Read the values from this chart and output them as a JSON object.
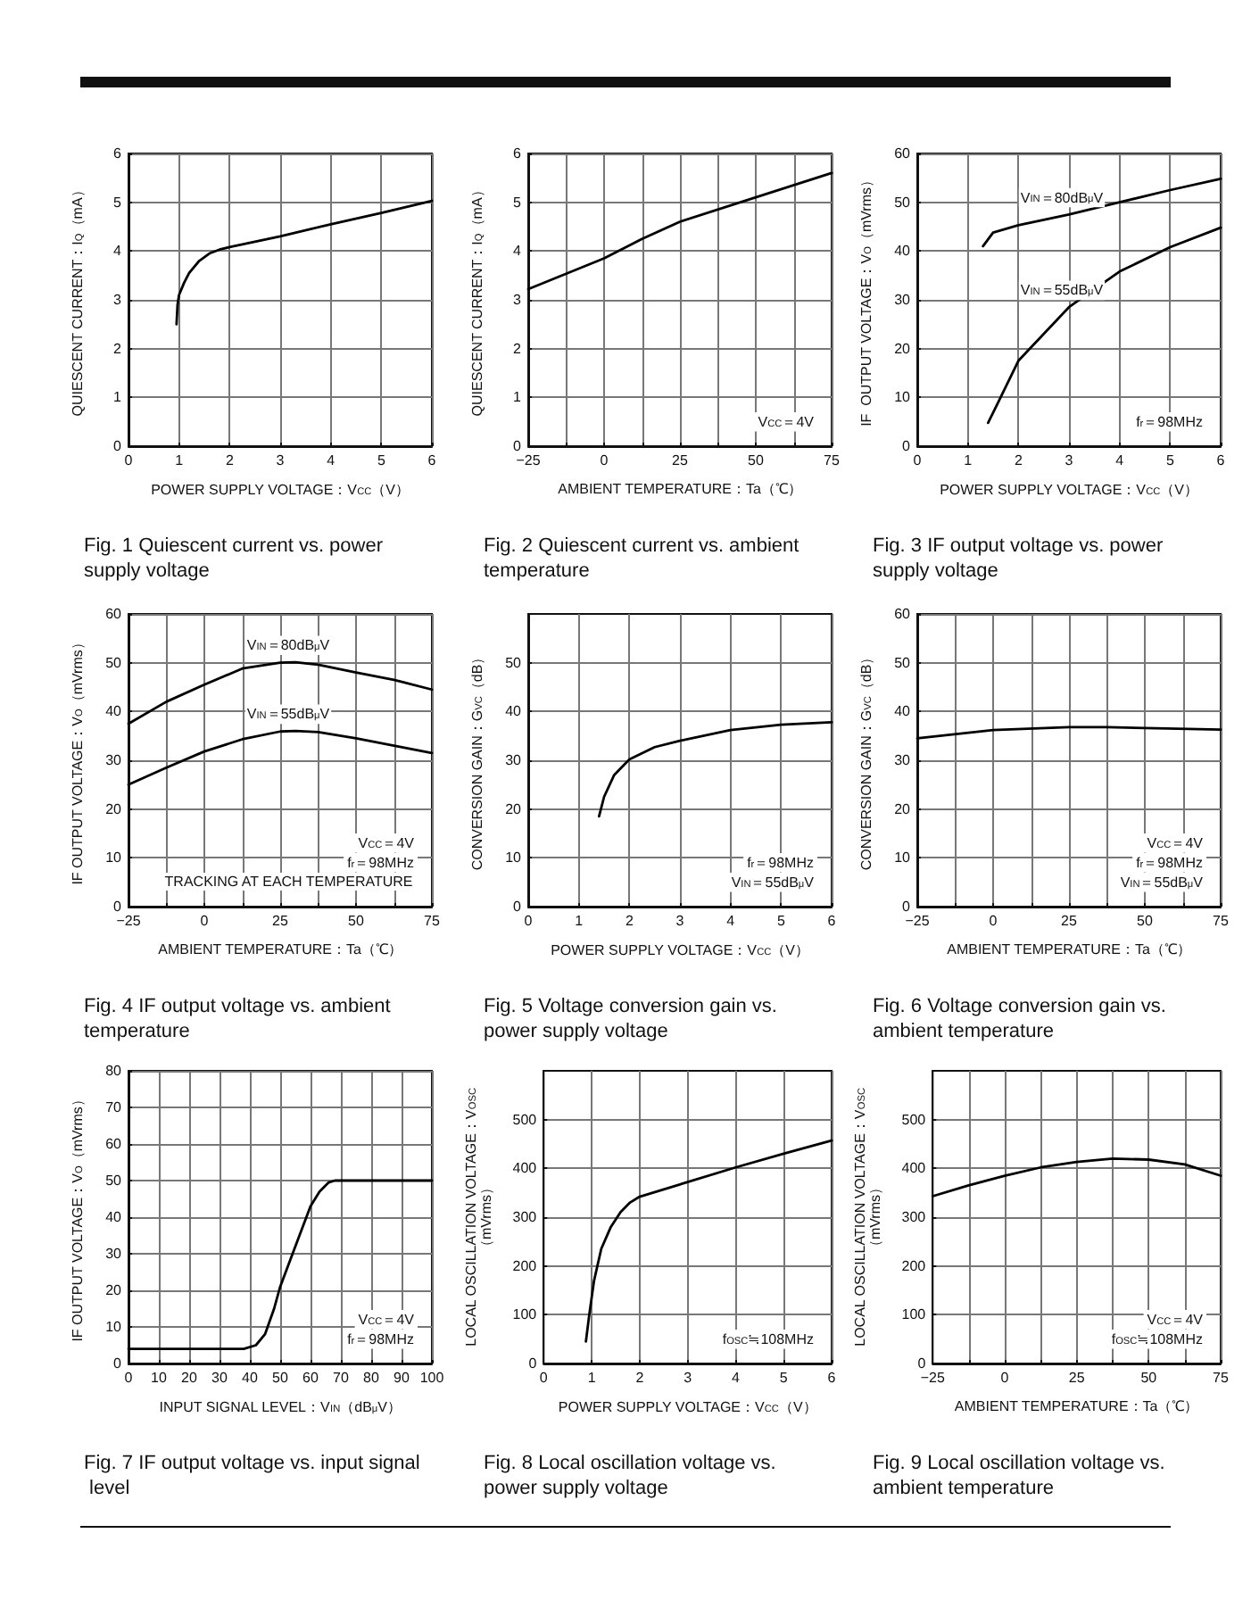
{
  "chart_data": [
    {
      "type": "line",
      "title": "Fig. 1 Quiescent current vs. power supply voltage",
      "xlabel": "POWER SUPPLY VOLTAGE：V$_{CC}$（V）",
      "ylabel": "QUIESCENT CURRENT：I$_{Q}$（mA）",
      "xlim": [
        0,
        6
      ],
      "xticks": [
        0,
        1,
        2,
        3,
        4,
        5,
        6
      ],
      "ylim": [
        0,
        6
      ],
      "yticks": [
        0,
        1,
        2,
        3,
        4,
        5,
        6
      ],
      "grid": true,
      "legend": false,
      "marker": "none",
      "line_style": "solid",
      "series": [
        {
          "color": "#000000",
          "x": [
            0.95,
            0.97,
            1.0,
            1.1,
            1.2,
            1.4,
            1.6,
            1.8,
            2.0,
            3,
            4,
            5,
            6
          ],
          "values": [
            2.5,
            2.9,
            3.1,
            3.35,
            3.55,
            3.8,
            3.95,
            4.03,
            4.08,
            4.3,
            4.55,
            4.78,
            5.03
          ]
        }
      ]
    },
    {
      "type": "line",
      "title": "Fig. 2 Quiescent current vs. ambient temperature",
      "xlabel": "AMBIENT TEMPERATURE：Ta（℃）",
      "ylabel": "QUIESCENT CURRENT：I$_{Q}$（mA）",
      "annotations": [
        "V$_{CC}$＝4V"
      ],
      "xlim": [
        -25,
        75
      ],
      "xticks": [
        {
          "value": -25,
          "label": "−25"
        },
        {
          "value": -12.5,
          "label": null
        },
        0,
        {
          "value": 12.5,
          "label": null
        },
        25,
        {
          "value": 37.5,
          "label": null
        },
        50,
        {
          "value": 62.5,
          "label": null
        },
        75
      ],
      "ylim": [
        0,
        6
      ],
      "yticks": [
        0,
        1,
        2,
        3,
        4,
        5,
        6
      ],
      "grid": true,
      "legend": false,
      "marker": "none",
      "line_style": "solid",
      "series": [
        {
          "color": "#000000",
          "x": [
            -25,
            0,
            12.5,
            25,
            50,
            75
          ],
          "values": [
            3.22,
            3.85,
            4.25,
            4.6,
            5.1,
            5.6
          ]
        }
      ]
    },
    {
      "type": "line",
      "title": "Fig. 3 IF output voltage vs. power supply voltage",
      "xlabel": "POWER SUPPLY VOLTAGE：V$_{CC}$（V）",
      "ylabel": "IF  OUTPUT VOLTAGE：V$_{O}$（mVrms）",
      "annotations": [
        "f$_{r}$＝98MHz"
      ],
      "xlim": [
        0,
        6
      ],
      "xticks": [
        0,
        1,
        2,
        3,
        4,
        5,
        6
      ],
      "ylim": [
        0,
        60
      ],
      "yticks": [
        0,
        10,
        20,
        30,
        40,
        50,
        60
      ],
      "grid": true,
      "legend": false,
      "marker": "none",
      "line_style": "solid",
      "series": [
        {
          "name": "V$_{IN}$＝80dB$_{μ}$V",
          "color": "#000000",
          "x": [
            1.3,
            1.5,
            2,
            3,
            4,
            5,
            6
          ],
          "values": [
            41,
            43.8,
            45.3,
            47.5,
            50,
            52.5,
            54.8
          ]
        },
        {
          "name": "V$_{IN}$＝55dB$_{μ}$V",
          "color": "#000000",
          "x": [
            1.4,
            1.6,
            2,
            2.5,
            3,
            4,
            5,
            6
          ],
          "values": [
            4.8,
            9,
            17.5,
            23,
            28.5,
            35.8,
            40.8,
            44.8
          ]
        }
      ]
    },
    {
      "type": "line",
      "title": "Fig. 4 IF output voltage vs. ambient temperature",
      "xlabel": "AMBIENT TEMPERATURE：Ta（℃）",
      "ylabel": "IF OUTPUT VOLTAGE：V$_{O}$（mVrms）",
      "annotations": [
        "V$_{CC}$＝4V",
        "f$_{r}$＝98MHz",
        "TRACKING AT EACH TEMPERATURE"
      ],
      "xlim": [
        -25,
        75
      ],
      "xticks": [
        {
          "value": -25,
          "label": "−25"
        },
        {
          "value": -12.5,
          "label": null
        },
        0,
        {
          "value": 12.5,
          "label": null
        },
        25,
        {
          "value": 37.5,
          "label": null
        },
        50,
        {
          "value": 62.5,
          "label": null
        },
        75
      ],
      "ylim": [
        0,
        60
      ],
      "yticks": [
        0,
        10,
        20,
        30,
        40,
        50,
        60
      ],
      "grid": true,
      "legend": false,
      "marker": "none",
      "line_style": "solid",
      "series": [
        {
          "name": "V$_{IN}$＝80dB$_{μ}$V",
          "color": "#000000",
          "x": [
            -25,
            -12.5,
            0,
            12.5,
            25,
            30,
            37.5,
            50,
            62.5,
            75
          ],
          "values": [
            37.5,
            42,
            45.5,
            48.8,
            50,
            50.1,
            49.6,
            48,
            46.5,
            44.5
          ]
        },
        {
          "name": "V$_{IN}$＝55dB$_{μ}$V",
          "color": "#000000",
          "x": [
            -25,
            -12.5,
            0,
            12.5,
            25,
            30,
            37.5,
            50,
            62.5,
            75
          ],
          "values": [
            25,
            28.5,
            31.8,
            34.3,
            35.9,
            36,
            35.8,
            34.5,
            33,
            31.5
          ]
        }
      ]
    },
    {
      "type": "line",
      "title": "Fig. 5 Voltage conversion gain vs. power supply voltage",
      "xlabel": "POWER SUPPLY VOLTAGE：V$_{CC}$（V）",
      "ylabel": "CONVERSION GAIN：G$_{VC}$（dB）",
      "annotations": [
        "f$_{r}$＝98MHz",
        "V$_{IN}$＝55dB$_{μ}$V"
      ],
      "xlim": [
        0,
        6
      ],
      "xticks": [
        0,
        1,
        2,
        3,
        4,
        5,
        6
      ],
      "ylim": [
        0,
        60
      ],
      "yticks": [
        0,
        10,
        20,
        30,
        40,
        50
      ],
      "grid": true,
      "legend": false,
      "marker": "none",
      "line_style": "solid",
      "series": [
        {
          "color": "#000000",
          "x": [
            1.4,
            1.5,
            1.7,
            2,
            2.5,
            3,
            4,
            5,
            6
          ],
          "values": [
            18.5,
            22.5,
            27,
            30.2,
            32.7,
            34,
            36.2,
            37.3,
            37.8
          ]
        }
      ]
    },
    {
      "type": "line",
      "title": "Fig. 6 Voltage conversion gain vs. ambient temperature",
      "xlabel": "AMBIENT TEMPERATURE：Ta（℃）",
      "ylabel": "CONVERSION GAIN：G$_{VC}$（dB）",
      "annotations": [
        "V$_{CC}$＝4V",
        "f$_{r}$＝98MHz",
        "V$_{IN}$＝55dB$_{μ}$V"
      ],
      "xlim": [
        -25,
        75
      ],
      "xticks": [
        {
          "value": -25,
          "label": "−25"
        },
        {
          "value": -12.5,
          "label": null
        },
        0,
        {
          "value": 12.5,
          "label": null
        },
        25,
        {
          "value": 37.5,
          "label": null
        },
        50,
        {
          "value": 62.5,
          "label": null
        },
        75
      ],
      "ylim": [
        0,
        60
      ],
      "yticks": [
        0,
        10,
        20,
        30,
        40,
        50,
        60
      ],
      "grid": true,
      "legend": false,
      "marker": "none",
      "line_style": "solid",
      "series": [
        {
          "color": "#000000",
          "x": [
            -25,
            0,
            25,
            37.5,
            50,
            75
          ],
          "values": [
            34.5,
            36.2,
            36.8,
            36.8,
            36.6,
            36.3
          ]
        }
      ]
    },
    {
      "type": "line",
      "title": "Fig. 7 IF output voltage vs. input signal level",
      "xlabel": "INPUT SIGNAL LEVEL：V$_{IN}$（dB$_{μ}$V）",
      "ylabel": "IF OUTPUT VOLTAGE：V$_{O}$（mVrms）",
      "annotations": [
        "V$_{CC}$＝4V",
        "f$_{r}$＝98MHz"
      ],
      "xlim": [
        0,
        100
      ],
      "xticks": [
        0,
        10,
        20,
        30,
        40,
        50,
        60,
        70,
        80,
        90,
        100
      ],
      "ylim": [
        0,
        80
      ],
      "yticks": [
        0,
        10,
        20,
        30,
        40,
        50,
        60,
        70,
        80
      ],
      "grid": true,
      "legend": false,
      "marker": "none",
      "line_style": "solid",
      "series": [
        {
          "color": "#000000",
          "x": [
            0,
            38,
            42,
            45,
            48,
            50,
            55,
            60,
            63,
            66,
            68,
            100
          ],
          "values": [
            4,
            4,
            5,
            8,
            15,
            21,
            32,
            43,
            47,
            49.5,
            50,
            50
          ]
        }
      ]
    },
    {
      "type": "line",
      "title": "Fig. 8 Local oscillation voltage vs. power supply voltage",
      "xlabel": "POWER SUPPLY VOLTAGE：V$_{CC}$（V）",
      "ylabel": "LOCAL OSCILLATION VOLTAGE：V$_{OSC}$\n（mVrms）",
      "annotations": [
        "f$_{OSC}$≒108MHz"
      ],
      "xlim": [
        0,
        6
      ],
      "xticks": [
        0,
        1,
        2,
        3,
        4,
        5,
        6
      ],
      "ylim": [
        0,
        600
      ],
      "yticks": [
        0,
        100,
        200,
        300,
        400,
        500
      ],
      "grid": true,
      "legend": false,
      "marker": "none",
      "line_style": "solid",
      "series": [
        {
          "color": "#000000",
          "x": [
            0.88,
            0.95,
            1.05,
            1.2,
            1.4,
            1.6,
            1.8,
            2,
            3,
            4,
            5,
            6
          ],
          "values": [
            45,
            100,
            170,
            235,
            280,
            310,
            330,
            342,
            372,
            402,
            430,
            457
          ]
        }
      ]
    },
    {
      "type": "line",
      "title": "Fig. 9 Local oscillation voltage vs. ambient temperature",
      "xlabel": "AMBIENT TEMPERATURE：Ta（℃）",
      "ylabel": "LOCAL OSCILLATION VOLTAGE：V$_{OSC}$\n（mVrms）",
      "annotations": [
        "V$_{CC}$＝4V",
        "f$_{OSC}$≒108MHz"
      ],
      "xlim": [
        -25,
        75
      ],
      "xticks": [
        {
          "value": -25,
          "label": "−25"
        },
        {
          "value": -12.5,
          "label": null
        },
        0,
        {
          "value": 12.5,
          "label": null
        },
        25,
        {
          "value": 37.5,
          "label": null
        },
        50,
        {
          "value": 62.5,
          "label": null
        },
        75
      ],
      "ylim": [
        0,
        600
      ],
      "yticks": [
        0,
        100,
        200,
        300,
        400,
        500
      ],
      "grid": true,
      "legend": false,
      "marker": "none",
      "line_style": "solid",
      "series": [
        {
          "color": "#000000",
          "x": [
            -25,
            -12.5,
            0,
            12.5,
            25,
            37.5,
            50,
            62.5,
            75
          ],
          "values": [
            343,
            365,
            385,
            402,
            413,
            420,
            418,
            408,
            385
          ]
        }
      ]
    }
  ]
}
